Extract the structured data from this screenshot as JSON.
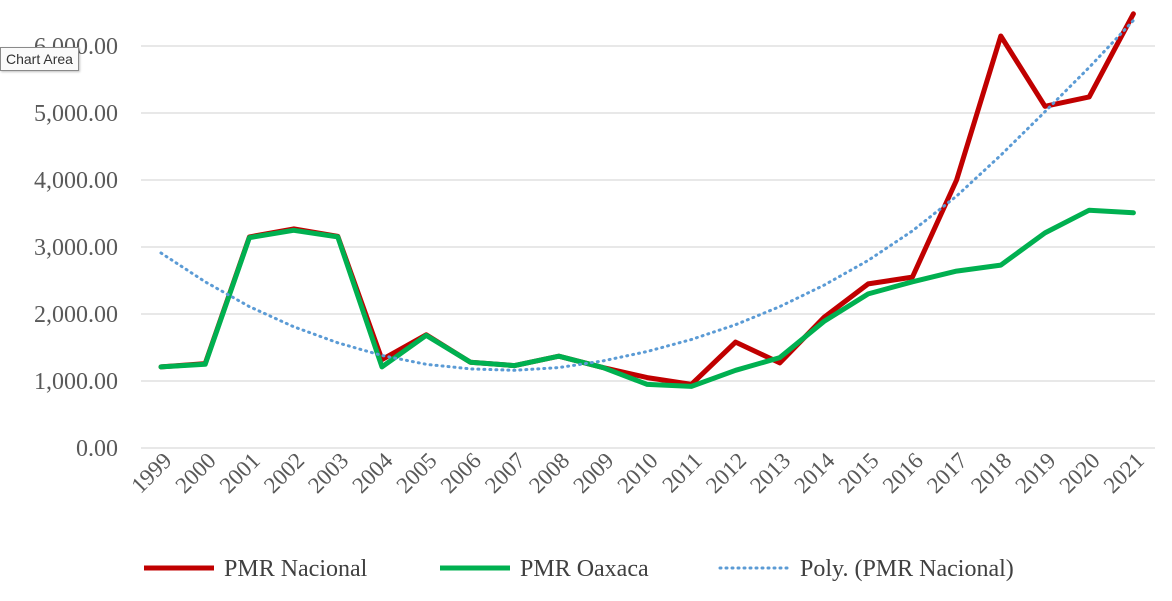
{
  "tooltip": {
    "text": "Chart Area"
  },
  "chart_data": {
    "type": "line",
    "x": [
      "1999",
      "2000",
      "2001",
      "2002",
      "2003",
      "2004",
      "2005",
      "2006",
      "2007",
      "2008",
      "2009",
      "2010",
      "2011",
      "2012",
      "2013",
      "2014",
      "2015",
      "2016",
      "2017",
      "2018",
      "2019",
      "2020",
      "2021"
    ],
    "y_ticks": [
      "0.00",
      "1,000.00",
      "2,000.00",
      "3,000.00",
      "4,000.00",
      "5,000.00",
      "6,000.00"
    ],
    "ylim": [
      0,
      6000
    ],
    "grid": true,
    "legend_position": "bottom",
    "series": [
      {
        "name": "PMR Nacional",
        "color": "#C00000",
        "style": "solid",
        "values": [
          1210,
          1260,
          3150,
          3270,
          3160,
          1320,
          1690,
          1280,
          1230,
          1370,
          1200,
          1050,
          950,
          1580,
          1270,
          1950,
          2450,
          2550,
          4000,
          6150,
          5100,
          5240,
          6480
        ]
      },
      {
        "name": "PMR Oaxaca",
        "color": "#00B050",
        "style": "solid",
        "values": [
          1210,
          1250,
          3140,
          3250,
          3150,
          1210,
          1680,
          1280,
          1230,
          1370,
          1200,
          950,
          920,
          1160,
          1350,
          1890,
          2300,
          2480,
          2640,
          2730,
          3210,
          3550,
          3510
        ]
      },
      {
        "name": "Poly. (PMR Nacional)",
        "color": "#5B9BD5",
        "style": "dotted",
        "values": [
          2910,
          2480,
          2110,
          1810,
          1570,
          1380,
          1250,
          1180,
          1160,
          1200,
          1300,
          1440,
          1620,
          1840,
          2110,
          2430,
          2800,
          3240,
          3760,
          4370,
          5020,
          5680,
          6380
        ]
      }
    ]
  }
}
